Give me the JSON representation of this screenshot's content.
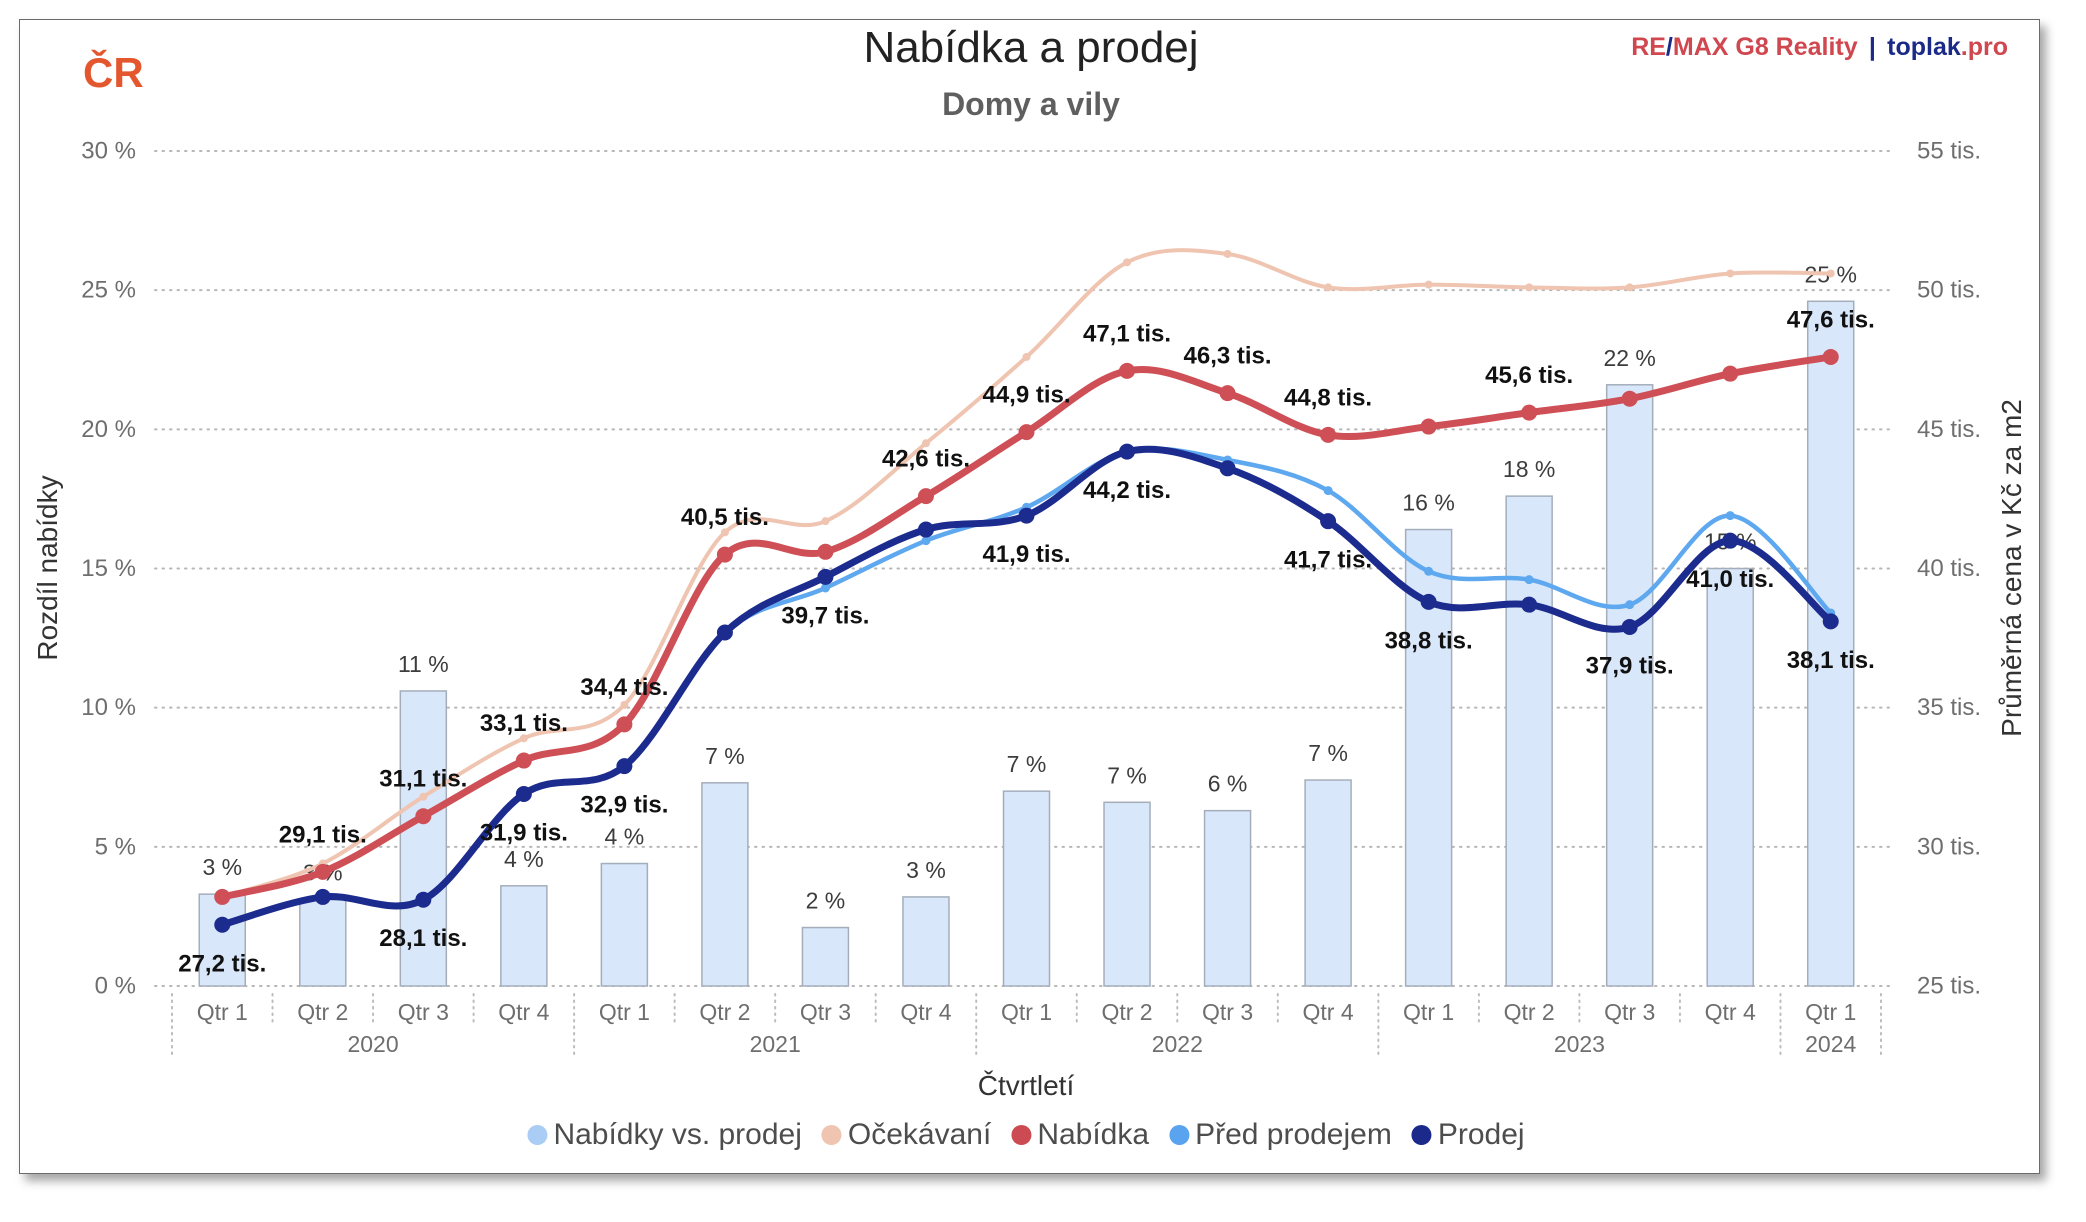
{
  "header": {
    "region": "ČR",
    "region_color": "#e4572e",
    "brand": {
      "re": "RE",
      "slash": "/",
      "max": "MAX G8 Reality",
      "sep": "|",
      "site": "toplak",
      "tld": ".pro",
      "red": "#d0474f",
      "navy": "#1b2a86"
    }
  },
  "chart_data": {
    "type": "bar",
    "title": "Nabídka a prodej",
    "subtitle": "Domy a vily",
    "xlabel": "Čtvrtletí",
    "ylabel": "Rozdíl nabídky",
    "y2label": "Průměrná cena v Kč za m2",
    "ylim": [
      0,
      30
    ],
    "y2lim": [
      25,
      55
    ],
    "yticks": [
      0,
      5,
      10,
      15,
      20,
      25,
      30
    ],
    "ytick_labels": [
      "0 %",
      "5 %",
      "10 %",
      "15 %",
      "20 %",
      "25 %",
      "30 %"
    ],
    "y2ticks": [
      25,
      30,
      35,
      40,
      45,
      50,
      55
    ],
    "y2tick_labels": [
      "25 tis.",
      "30 tis.",
      "35 tis.",
      "40 tis.",
      "45 tis.",
      "50 tis.",
      "55 tis."
    ],
    "quarters": [
      "Qtr 1",
      "Qtr 2",
      "Qtr 3",
      "Qtr 4",
      "Qtr 1",
      "Qtr 2",
      "Qtr 3",
      "Qtr 4",
      "Qtr 1",
      "Qtr 2",
      "Qtr 3",
      "Qtr 4",
      "Qtr 1",
      "Qtr 2",
      "Qtr 3",
      "Qtr 4",
      "Qtr 1"
    ],
    "years": [
      {
        "label": "2020",
        "quarters": 4
      },
      {
        "label": "2021",
        "quarters": 4
      },
      {
        "label": "2022",
        "quarters": 4
      },
      {
        "label": "2023",
        "quarters": 4
      },
      {
        "label": "2024",
        "quarters": 1
      }
    ],
    "grid": true,
    "legend_position": "bottom",
    "series": [
      {
        "name": "Nabídky vs. prodej",
        "type": "bar",
        "axis": "left",
        "color": "#d9e7fa",
        "edge_color": "#a4aebb",
        "legend_color": "#a9cdf4",
        "values": [
          3.3,
          3.1,
          10.6,
          3.6,
          4.4,
          7.3,
          2.1,
          3.2,
          7.0,
          6.6,
          6.3,
          7.4,
          16.4,
          17.6,
          21.6,
          15.0,
          24.6
        ],
        "labels": [
          "3 %",
          "3 %",
          "11 %",
          "4 %",
          "4 %",
          "7 %",
          "2 %",
          "3 %",
          "7 %",
          "7 %",
          "6 %",
          "7 %",
          "16 %",
          "18 %",
          "22 %",
          "15 %",
          "25 %"
        ]
      },
      {
        "name": "Očekávaní",
        "type": "line",
        "axis": "right",
        "color": "#efc4b0",
        "legend_color": "#efc4b0",
        "values": [
          28.2,
          29.4,
          31.8,
          33.9,
          35.1,
          41.3,
          41.7,
          44.5,
          47.6,
          51.0,
          51.3,
          50.1,
          50.2,
          50.1,
          50.1,
          50.6,
          50.6
        ]
      },
      {
        "name": "Nabídka",
        "type": "line",
        "axis": "right",
        "color": "#cf4f56",
        "legend_color": "#cc4b52",
        "values": [
          28.2,
          29.1,
          31.1,
          33.1,
          34.4,
          40.5,
          40.6,
          42.6,
          44.9,
          47.1,
          46.3,
          44.8,
          45.1,
          45.6,
          46.1,
          47.0,
          47.6
        ],
        "labels": [
          null,
          "29,1 tis.",
          "31,1 tis.",
          "33,1 tis.",
          "34,4 tis.",
          "40,5 tis.",
          null,
          "42,6 tis.",
          "44,9 tis.",
          "47,1 tis.",
          "46,3 tis.",
          "44,8 tis.",
          null,
          "45,6 tis.",
          null,
          null,
          "47,6 tis."
        ]
      },
      {
        "name": "Před prodejem",
        "type": "line",
        "axis": "right",
        "color": "#5ea8f0",
        "legend_color": "#5aa3ee",
        "values": [
          27.2,
          28.2,
          28.1,
          31.9,
          32.9,
          37.7,
          39.3,
          41.0,
          42.2,
          44.2,
          43.9,
          42.8,
          39.9,
          39.6,
          38.7,
          41.9,
          38.4
        ]
      },
      {
        "name": "Prodej",
        "type": "line",
        "axis": "right",
        "color": "#1c2b8e",
        "legend_color": "#1b2a8a",
        "values": [
          27.2,
          28.2,
          28.1,
          31.9,
          32.9,
          37.7,
          39.7,
          41.4,
          41.9,
          44.2,
          43.6,
          41.7,
          38.8,
          38.7,
          37.9,
          41.0,
          38.1
        ],
        "labels": [
          "27,2 tis.",
          null,
          "28,1 tis.",
          "31,9 tis.",
          "32,9 tis.",
          null,
          "39,7 tis.",
          null,
          "41,9 tis.",
          "44,2 tis.",
          null,
          "41,7 tis.",
          "38,8 tis.",
          null,
          "37,9 tis.",
          "41,0 tis.",
          "38,1 tis."
        ]
      }
    ]
  }
}
